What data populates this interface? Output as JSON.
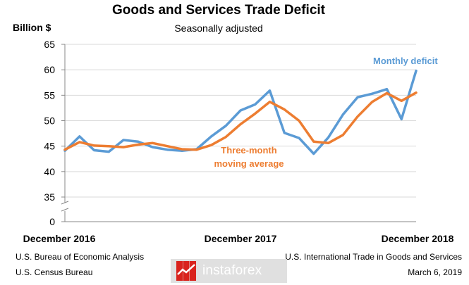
{
  "chart_data": {
    "type": "line",
    "title": "Goods and Services Trade Deficit",
    "subtitle": "Seasonally adjusted",
    "ylabel": "Billion $",
    "ylim": [
      0,
      65
    ],
    "yticks": [
      0,
      35,
      40,
      45,
      50,
      55,
      60,
      65
    ],
    "axis_break": true,
    "x_tick_labels": [
      "December 2016",
      "December 2017",
      "December 2018"
    ],
    "x": [
      "Dec 2016",
      "Jan 2017",
      "Feb 2017",
      "Mar 2017",
      "Apr 2017",
      "May 2017",
      "Jun 2017",
      "Jul 2017",
      "Aug 2017",
      "Sep 2017",
      "Oct 2017",
      "Nov 2017",
      "Dec 2017",
      "Jan 2018",
      "Feb 2018",
      "Mar 2018",
      "Apr 2018",
      "May 2018",
      "Jun 2018",
      "Jul 2018",
      "Aug 2018",
      "Sep 2018",
      "Oct 2018",
      "Nov 2018",
      "Dec 2018"
    ],
    "series": [
      {
        "name": "Monthly deficit",
        "color": "#5b9bd5",
        "values": [
          44.1,
          46.9,
          44.2,
          43.9,
          46.2,
          45.9,
          44.8,
          44.3,
          44.1,
          44.4,
          46.9,
          49.0,
          52.0,
          53.2,
          55.9,
          47.6,
          46.6,
          43.5,
          46.7,
          51.2,
          54.6,
          55.3,
          56.2,
          50.3,
          59.8
        ]
      },
      {
        "name": "Three-month moving average",
        "color": "#ed7d31",
        "values": [
          44.3,
          45.8,
          45.1,
          45.0,
          44.8,
          45.3,
          45.6,
          45.0,
          44.4,
          44.3,
          45.2,
          46.8,
          49.3,
          51.4,
          53.7,
          52.2,
          50.0,
          45.9,
          45.6,
          47.2,
          50.8,
          53.7,
          55.4,
          53.9,
          55.5
        ]
      }
    ]
  },
  "annotations": {
    "monthly": "Monthly deficit",
    "moving_avg_line1": "Three-month",
    "moving_avg_line2": "moving average"
  },
  "footer": {
    "left_line1": "U.S. Bureau of Economic Analysis",
    "left_line2": "U.S. Census Bureau",
    "right_line1": "U.S. International Trade in Goods and Services",
    "right_line2": "March 6, 2019"
  },
  "watermark": {
    "text": "instaforex"
  },
  "colors": {
    "monthly": "#5b9bd5",
    "moving_avg": "#ed7d31",
    "grid": "#d9d9d9",
    "watermark_red": "#d9231d"
  }
}
